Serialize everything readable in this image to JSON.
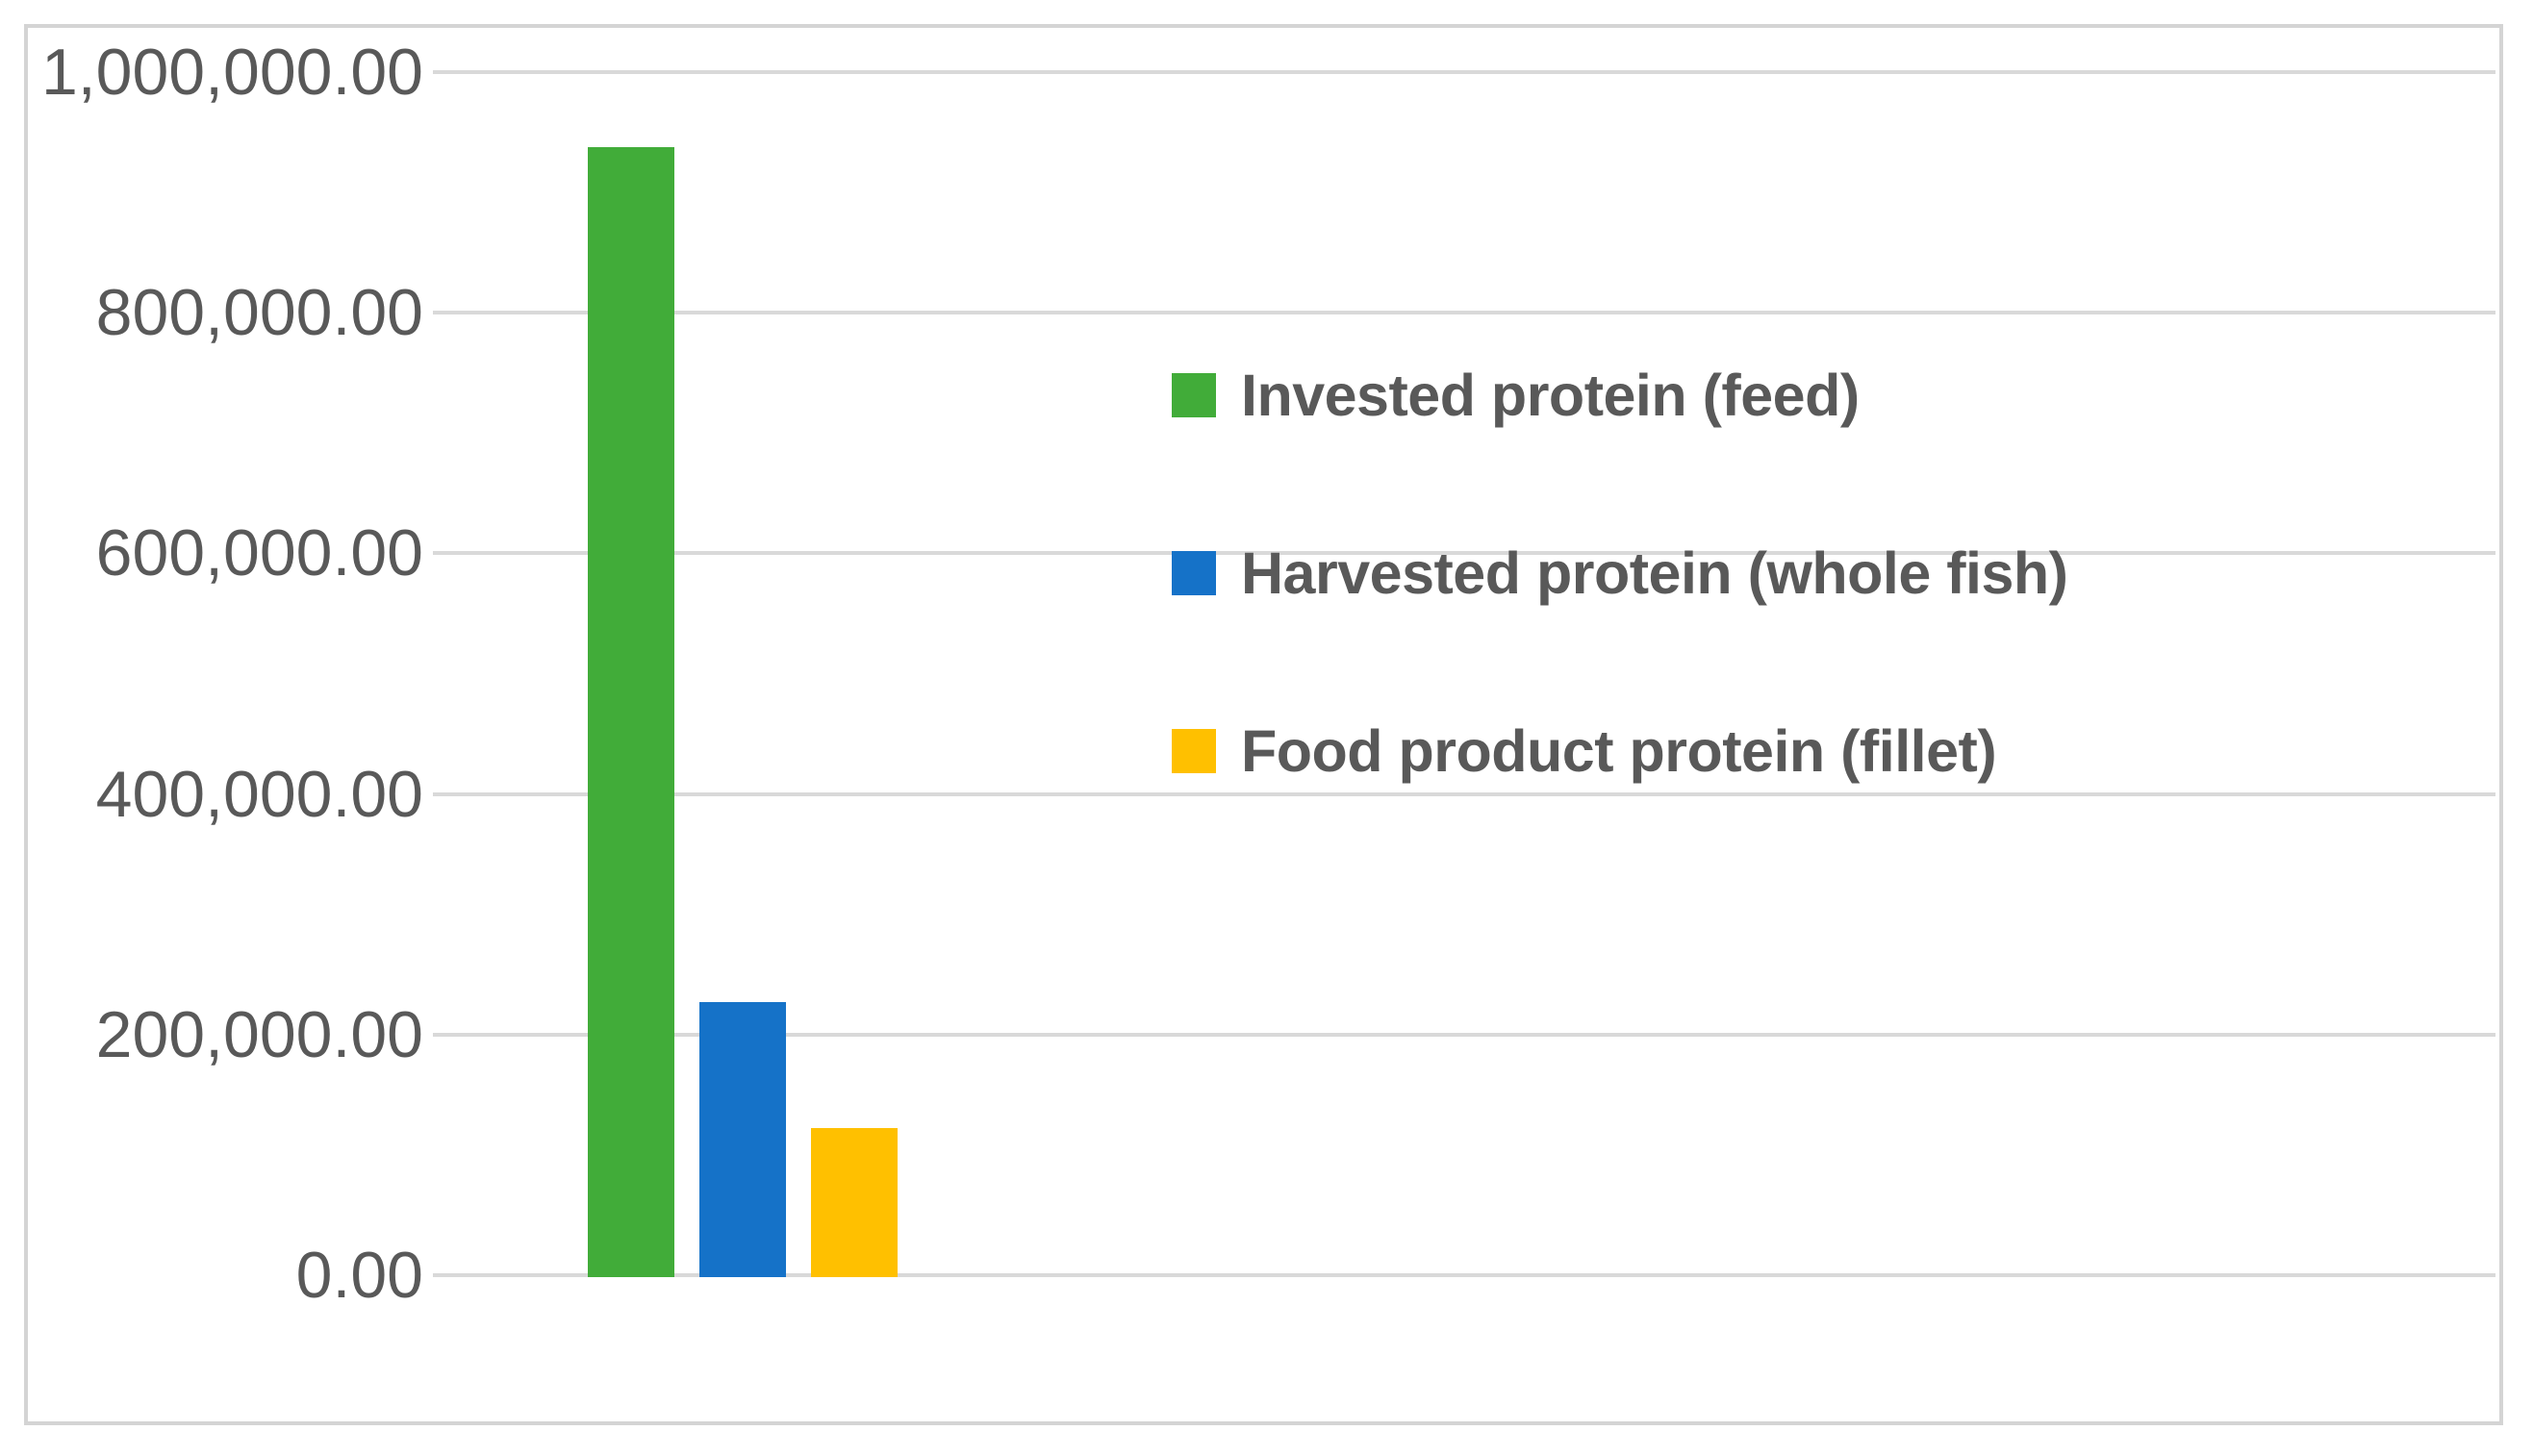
{
  "chart_data": {
    "type": "bar",
    "title": "",
    "xlabel": "",
    "ylabel": "",
    "ylim": [
      0,
      1000000
    ],
    "ytick_interval": 200000,
    "grid": true,
    "legend_position": "right-center",
    "categories": [
      "Invested protein (feed)",
      "Harvested protein (whole fish)",
      "Food product protein (fillet)"
    ],
    "series": [
      {
        "name": "Invested protein (feed)",
        "value": 938000,
        "color": "#41ac39"
      },
      {
        "name": "Harvested protein (whole fish)",
        "value": 227000,
        "color": "#1572c8"
      },
      {
        "name": "Food product protein (fillet)",
        "value": 122000,
        "color": "#ffc000"
      }
    ],
    "yticks": [
      {
        "value": 1000000,
        "label": "1,000,000.00"
      },
      {
        "value": 800000,
        "label": "800,000.00"
      },
      {
        "value": 600000,
        "label": "600,000.00"
      },
      {
        "value": 400000,
        "label": "400,000.00"
      },
      {
        "value": 200000,
        "label": "200,000.00"
      },
      {
        "value": 0,
        "label": "0.00"
      }
    ]
  },
  "style_colors": {
    "background": "#ffffff",
    "frame_border": "#d4d4d4",
    "gridline": "#d9d9d9",
    "label_text": "#595959"
  }
}
